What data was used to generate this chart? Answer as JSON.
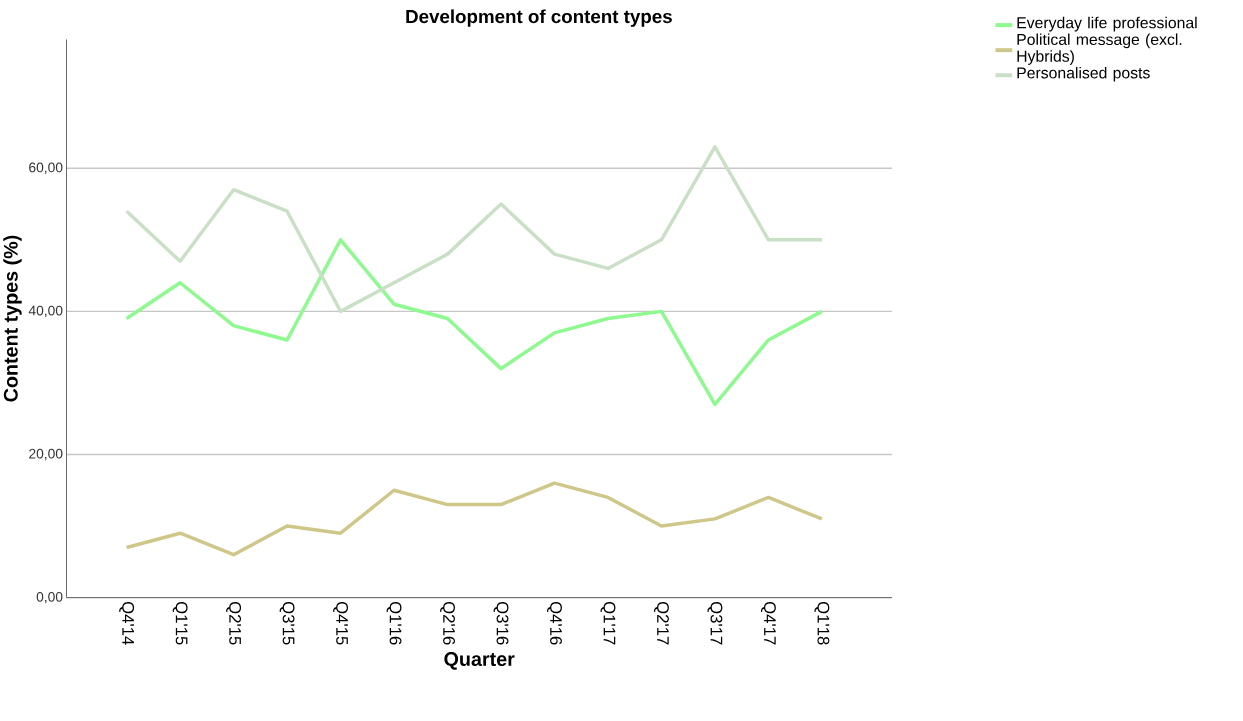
{
  "chart_data": {
    "type": "line",
    "title": "Development of content types",
    "xlabel": "Quarter",
    "ylabel": "Content types (%)",
    "categories": [
      "Q4'14",
      "Q1'15",
      "Q2'15",
      "Q3'15",
      "Q4'15",
      "Q1'16",
      "Q2'16",
      "Q3'16",
      "Q4'16",
      "Q1'17",
      "Q2'17",
      "Q3'17",
      "Q4'17",
      "Q1'18"
    ],
    "series": [
      {
        "name": "Everyday life professional",
        "color": "#8ef98e",
        "values": [
          39,
          44,
          38,
          36,
          50,
          41,
          39,
          32,
          37,
          39,
          40,
          27,
          36,
          40
        ]
      },
      {
        "name": "Political message (excl. Hybrids)",
        "color": "#cfc78a",
        "values": [
          7,
          9,
          6,
          10,
          9,
          15,
          13,
          13,
          16,
          14,
          10,
          11,
          14,
          11
        ]
      },
      {
        "name": "Personalised posts",
        "color": "#c9e0c6",
        "values": [
          54,
          47,
          57,
          54,
          40,
          44,
          48,
          55,
          48,
          46,
          50,
          63,
          50,
          50
        ]
      }
    ],
    "ylim": [
      0,
      78
    ],
    "yticks": [
      {
        "value": 0,
        "label": "0,00"
      },
      {
        "value": 20,
        "label": "20,00"
      },
      {
        "value": 40,
        "label": "40,00"
      },
      {
        "value": 60,
        "label": "60,00"
      }
    ],
    "grid": "y",
    "legend": "top right",
    "line_style": "solid",
    "marker": "none"
  }
}
